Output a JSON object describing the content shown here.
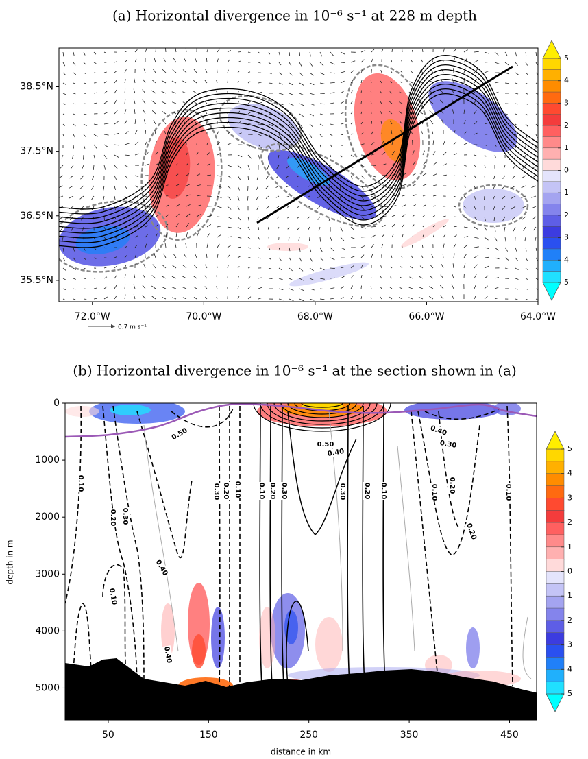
{
  "chart_data": [
    {
      "type": "contour-map",
      "title": "(a) Horizontal divergence in 10⁻⁶ s⁻¹ at 228 m depth",
      "xlim": [
        -72.6,
        -64
      ],
      "ylim": [
        35.17,
        39.1
      ],
      "xticks": [
        {
          "value": -72,
          "label": "72.0°W"
        },
        {
          "value": -70,
          "label": "70.0°W"
        },
        {
          "value": -68,
          "label": "68.0°W"
        },
        {
          "value": -66,
          "label": "66.0°W"
        },
        {
          "value": -64,
          "label": "64.0°W"
        }
      ],
      "yticks": [
        {
          "value": 35.5,
          "label": "35.5°N"
        },
        {
          "value": 36.5,
          "label": "36.5°N"
        },
        {
          "value": 37.5,
          "label": "37.5°N"
        },
        {
          "value": 38.5,
          "label": "38.5°N"
        }
      ],
      "reference_vector_label": "0.7 m s⁻¹",
      "colorbar": {
        "clim": [
          -5,
          5
        ],
        "ticks": [
          5,
          4,
          3,
          2,
          1,
          0,
          {
            "value": -1,
            "label": "1"
          },
          {
            "value": -2,
            "label": "2"
          },
          {
            "value": -3,
            "label": "3"
          },
          {
            "value": -4,
            "label": "4"
          },
          {
            "value": -5,
            "label": "5"
          }
        ],
        "colors": [
          "#ffd700",
          "#ffb000",
          "#ff8c00",
          "#ff6a10",
          "#ff4a30",
          "#f43c3c",
          "#ff6060",
          "#ff8a8a",
          "#ffb0b0",
          "#ffdada",
          "#e4e4fc",
          "#c4c4f6",
          "#a4a4f0",
          "#8484ec",
          "#5e5ee6",
          "#3c3ce0",
          "#2a50f0",
          "#2080f8",
          "#20b0fc",
          "#20e0ff"
        ],
        "extend_colors": [
          "#ffee00",
          "#00ffff"
        ]
      }
    },
    {
      "type": "contour-section",
      "title": "(b) Horizontal divergence in 10⁻⁶ s⁻¹ at the section shown in (a)",
      "x_label": "distance in km",
      "y_label": "depth in m",
      "xlim": [
        7,
        477
      ],
      "ylim": [
        5560,
        0
      ],
      "xticks": [
        50,
        150,
        250,
        350,
        450
      ],
      "yticks": [
        0,
        1000,
        2000,
        3000,
        4000,
        5000
      ],
      "contour_labels": [
        "0.10",
        "0.20",
        "0.30",
        "0.40",
        "0.30",
        "0.20",
        "0.10",
        "0.10",
        "0.20",
        "0.30",
        "0.50",
        "0.40",
        "0.30",
        "0.20",
        "0.10",
        "0.50",
        "0.10",
        "0.20",
        "0.40",
        "0.30",
        "0.20",
        "0.10",
        "0.10",
        "0.40"
      ],
      "colorbar": {
        "clim": [
          -5,
          5
        ],
        "ticks": [
          5,
          4,
          3,
          2,
          1,
          0,
          {
            "value": -1,
            "label": "1"
          },
          {
            "value": -2,
            "label": "2"
          },
          {
            "value": -3,
            "label": "3"
          },
          {
            "value": -4,
            "label": "4"
          },
          {
            "value": -5,
            "label": "5"
          }
        ],
        "colors": [
          "#ffd700",
          "#ffb000",
          "#ff8c00",
          "#ff6a10",
          "#ff4a30",
          "#f43c3c",
          "#ff6060",
          "#ff8a8a",
          "#ffb0b0",
          "#ffdada",
          "#e4e4fc",
          "#c4c4f6",
          "#a4a4f0",
          "#8484ec",
          "#5e5ee6",
          "#3c3ce0",
          "#2a50f0",
          "#2080f8",
          "#20b0fc",
          "#20e0ff"
        ],
        "extend_colors": [
          "#ffee00",
          "#00ffff"
        ]
      }
    }
  ]
}
